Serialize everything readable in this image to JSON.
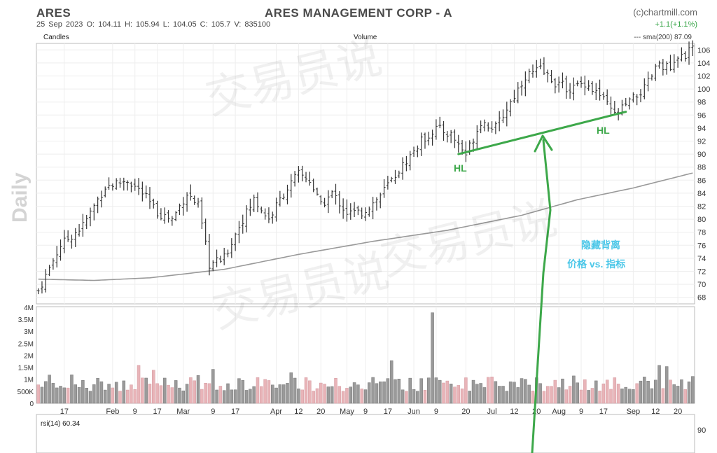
{
  "header": {
    "ticker": "ARES",
    "stats": "25 Sep 2023   O: 104.11   H: 105.94   L: 104.05   C: 105.7   V: 835100",
    "title": "ARES MANAGEMENT CORP - A",
    "brand": "(c)chartmill.com",
    "change": "+1.1(+1.1%)",
    "sma_legend": "--- sma(200) 87.09"
  },
  "labels": {
    "candles": "Candles",
    "volume": "Volume",
    "period": "Daily",
    "rsi": "rsi(14) 60.34"
  },
  "annotations": {
    "hl_left": "HL",
    "hl_right": "HL",
    "divergence_line1": "隐藏背离",
    "divergence_line2": "价格 vs. 指标"
  },
  "watermark": "交易员说",
  "colors": {
    "trend_line": "#3da84a",
    "annotation_text": "#4cc7e8",
    "bar": "#333333",
    "volume_up": "#9a9a9a",
    "volume_down": "#e8b4b8",
    "sma_line": "#999999"
  },
  "chart_data": {
    "type": "bar",
    "subtype": "ohlc",
    "price_axis_range": [
      67,
      107
    ],
    "price_ticks": [
      68,
      70,
      72,
      74,
      76,
      78,
      80,
      82,
      84,
      86,
      88,
      90,
      92,
      94,
      96,
      98,
      100,
      102,
      104,
      106
    ],
    "volume_ticks": [
      "0",
      "500K",
      "1M",
      "1.5M",
      "2M",
      "2.5M",
      "3M",
      "3.5M",
      "4M"
    ],
    "volume_range": [
      0,
      4000000
    ],
    "rsi_ticks": [
      "90"
    ],
    "x_tick_labels": [
      "17",
      "Feb",
      "9",
      "17",
      "Mar",
      "9",
      "17",
      "Apr",
      "12",
      "20",
      "May",
      "9",
      "17",
      "Jun",
      "9",
      "20",
      "Jul",
      "12",
      "20",
      "Aug",
      "9",
      "17",
      "Sep",
      "12",
      "20"
    ],
    "x_tick_index": [
      7,
      20,
      26,
      32,
      39,
      47,
      53,
      64,
      70,
      76,
      83,
      88,
      94,
      101,
      107,
      115,
      122,
      128,
      134,
      140,
      146,
      152,
      160,
      166,
      172
    ],
    "total_bars": 177,
    "close_anchors": [
      [
        0,
        69
      ],
      [
        6,
        76
      ],
      [
        12,
        79
      ],
      [
        18,
        85
      ],
      [
        24,
        86
      ],
      [
        28,
        84
      ],
      [
        32,
        81
      ],
      [
        36,
        80
      ],
      [
        40,
        84
      ],
      [
        43,
        82
      ],
      [
        46,
        73
      ],
      [
        50,
        74
      ],
      [
        54,
        79
      ],
      [
        58,
        83
      ],
      [
        62,
        80
      ],
      [
        66,
        84
      ],
      [
        70,
        87
      ],
      [
        73,
        86
      ],
      [
        76,
        82
      ],
      [
        79,
        84
      ],
      [
        83,
        81
      ],
      [
        87,
        81
      ],
      [
        91,
        83
      ],
      [
        95,
        86
      ],
      [
        99,
        89
      ],
      [
        103,
        92
      ],
      [
        107,
        94
      ],
      [
        111,
        93
      ],
      [
        115,
        90
      ],
      [
        119,
        95
      ],
      [
        123,
        94
      ],
      [
        127,
        98
      ],
      [
        131,
        102
      ],
      [
        135,
        103
      ],
      [
        139,
        101
      ],
      [
        143,
        100
      ],
      [
        147,
        101
      ],
      [
        151,
        99
      ],
      [
        155,
        96
      ],
      [
        159,
        98
      ],
      [
        163,
        100
      ],
      [
        167,
        104
      ],
      [
        170,
        103
      ],
      [
        173,
        105
      ],
      [
        176,
        106
      ]
    ],
    "sma200": {
      "name": "sma(200)",
      "last": 87.09,
      "anchors": [
        [
          0,
          70.8
        ],
        [
          15,
          70.6
        ],
        [
          30,
          71.0
        ],
        [
          50,
          72.3
        ],
        [
          70,
          74.6
        ],
        [
          90,
          76.6
        ],
        [
          110,
          78.3
        ],
        [
          130,
          80.6
        ],
        [
          145,
          83.0
        ],
        [
          160,
          84.8
        ],
        [
          176,
          87.1
        ]
      ]
    },
    "trend_lines": [
      {
        "label": "HL",
        "from": [
          113,
          90
        ],
        "to": [
          158,
          96.5
        ]
      }
    ],
    "volume_spike_index": 106,
    "volume_spike_value": 3750000,
    "xlabel": "",
    "ylabel": "",
    "grid": true
  }
}
